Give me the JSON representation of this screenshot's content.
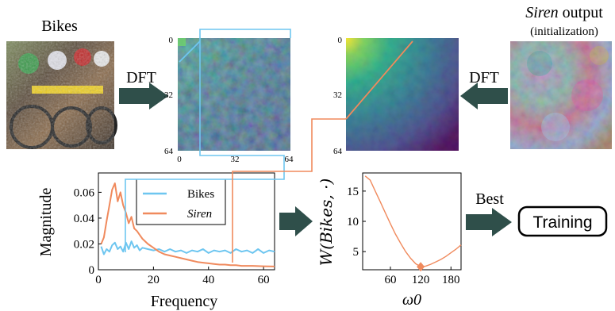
{
  "labels": {
    "bikes_title": "Bikes",
    "siren_title_em": "Siren",
    "siren_title_rest": " output",
    "siren_subtitle": "(initialization)",
    "dft_left": "DFT",
    "dft_right": "DFT",
    "best_line1": "Best",
    "best_line2": "ω",
    "best_sub": "0",
    "training": "Training"
  },
  "heatmap_ticks": [
    "0",
    "32",
    "64"
  ],
  "colors": {
    "bikes": "#6ec6f0",
    "siren": "#f08a5d",
    "arrow": "#2f4f4a",
    "viridis_dark": "#440154",
    "viridis_mid": "#21908d",
    "viridis_yellow": "#fde725"
  },
  "chart_data": [
    {
      "type": "line",
      "title": "",
      "xlabel": "Frequency",
      "ylabel": "Magnitude",
      "xlim": [
        0,
        64
      ],
      "ylim": [
        0,
        0.075
      ],
      "xticks": [
        "0",
        "20",
        "40",
        "60"
      ],
      "yticks": [
        "0",
        "0.02",
        "0.04",
        "0.06"
      ],
      "legend": "top-right",
      "series": [
        {
          "name": "Bikes",
          "x": [
            1,
            2,
            3,
            4,
            5,
            6,
            7,
            8,
            9,
            10,
            11,
            12,
            13,
            14,
            15,
            16,
            18,
            20,
            22,
            24,
            26,
            28,
            30,
            32,
            34,
            36,
            38,
            40,
            42,
            44,
            46,
            48,
            50,
            52,
            54,
            56,
            58,
            60,
            62,
            64
          ],
          "values": [
            0.018,
            0.012,
            0.016,
            0.014,
            0.019,
            0.021,
            0.016,
            0.018,
            0.014,
            0.021,
            0.016,
            0.022,
            0.017,
            0.019,
            0.015,
            0.017,
            0.016,
            0.015,
            0.016,
            0.014,
            0.016,
            0.014,
            0.015,
            0.013,
            0.015,
            0.014,
            0.016,
            0.013,
            0.015,
            0.014,
            0.015,
            0.013,
            0.016,
            0.014,
            0.015,
            0.013,
            0.016,
            0.013,
            0.015,
            0.014
          ]
        },
        {
          "name": "Siren",
          "x": [
            1,
            2,
            3,
            4,
            5,
            6,
            7,
            8,
            9,
            10,
            11,
            12,
            13,
            14,
            15,
            16,
            18,
            20,
            22,
            24,
            26,
            28,
            30,
            32,
            34,
            36,
            38,
            40,
            42,
            44,
            46,
            48,
            50,
            52,
            54,
            56,
            58,
            60,
            62,
            64
          ],
          "values": [
            0.02,
            0.025,
            0.038,
            0.05,
            0.062,
            0.067,
            0.053,
            0.06,
            0.05,
            0.044,
            0.036,
            0.041,
            0.032,
            0.03,
            0.027,
            0.024,
            0.02,
            0.017,
            0.014,
            0.012,
            0.011,
            0.01,
            0.009,
            0.008,
            0.007,
            0.006,
            0.0055,
            0.005,
            0.0045,
            0.004,
            0.004,
            0.0035,
            0.0035,
            0.003,
            0.003,
            0.003,
            0.0028,
            0.0027,
            0.0026,
            0.0025
          ]
        }
      ]
    },
    {
      "type": "line",
      "title": "",
      "xlabel": "ω0",
      "ylabel": "W(Bikes, ·)",
      "xlim": [
        5,
        200
      ],
      "ylim": [
        2,
        18
      ],
      "xticks": [
        "60",
        "120",
        "180"
      ],
      "yticks": [
        "5",
        "10",
        "15"
      ],
      "series": [
        {
          "name": "",
          "x": [
            10,
            20,
            30,
            40,
            50,
            60,
            70,
            80,
            90,
            100,
            110,
            120,
            130,
            140,
            150,
            160,
            170,
            180,
            190,
            200
          ],
          "values": [
            17.5,
            16.8,
            15.0,
            13.2,
            11.4,
            9.6,
            7.9,
            6.4,
            5.0,
            3.9,
            3.0,
            2.5,
            2.6,
            2.9,
            3.3,
            3.7,
            4.2,
            4.8,
            5.4,
            6.1
          ]
        }
      ],
      "best_marker": {
        "x": 120,
        "y": 2.5
      }
    }
  ]
}
